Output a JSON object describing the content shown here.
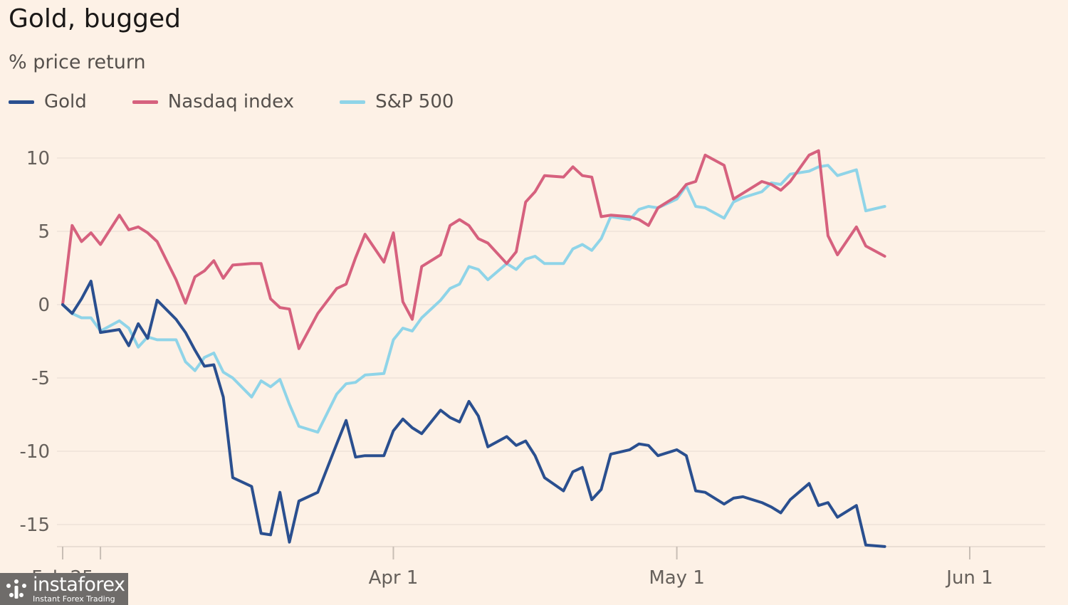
{
  "chart_data": {
    "type": "line",
    "title": "Gold, bugged",
    "subtitle": "% price return",
    "yticks": [
      10,
      5,
      0,
      -5,
      -10,
      -15
    ],
    "ylim": [
      -17,
      11.5
    ],
    "x_start": "2025-02-25",
    "x_end": "2025-06-06",
    "xticks": [
      {
        "date": "2025-02-25",
        "label": "Feb 25"
      },
      {
        "date": "2025-04-01",
        "label": "Apr 1"
      },
      {
        "date": "2025-05-01",
        "label": "May 1"
      },
      {
        "date": "2025-06-01",
        "label": "Jun 1"
      }
    ],
    "x_minor_ticks": [
      "2025-03-01"
    ],
    "grid": true,
    "legend_position": "top-left",
    "series": [
      {
        "name": "Gold",
        "color": "#2a4f8f",
        "points": [
          [
            "2025-02-25",
            0
          ],
          [
            "2025-02-26",
            -0.6
          ],
          [
            "2025-02-27",
            0.4
          ],
          [
            "2025-02-28",
            1.6
          ],
          [
            "2025-03-01",
            -1.9
          ],
          [
            "2025-03-03",
            -1.7
          ],
          [
            "2025-03-04",
            -2.8
          ],
          [
            "2025-03-05",
            -1.3
          ],
          [
            "2025-03-06",
            -2.3
          ],
          [
            "2025-03-07",
            0.3
          ],
          [
            "2025-03-09",
            -1.0
          ],
          [
            "2025-03-10",
            -1.9
          ],
          [
            "2025-03-11",
            -3.1
          ],
          [
            "2025-03-12",
            -4.2
          ],
          [
            "2025-03-13",
            -4.1
          ],
          [
            "2025-03-14",
            -6.3
          ],
          [
            "2025-03-15",
            -11.8
          ],
          [
            "2025-03-17",
            -12.4
          ],
          [
            "2025-03-18",
            -15.6
          ],
          [
            "2025-03-19",
            -15.7
          ],
          [
            "2025-03-20",
            -12.8
          ],
          [
            "2025-03-21",
            -16.2
          ],
          [
            "2025-03-22",
            -13.4
          ],
          [
            "2025-03-24",
            -12.8
          ],
          [
            "2025-03-26",
            -9.5
          ],
          [
            "2025-03-27",
            -7.9
          ],
          [
            "2025-03-28",
            -10.4
          ],
          [
            "2025-03-29",
            -10.3
          ],
          [
            "2025-03-31",
            -10.3
          ],
          [
            "2025-04-01",
            -8.6
          ],
          [
            "2025-04-02",
            -7.8
          ],
          [
            "2025-04-03",
            -8.4
          ],
          [
            "2025-04-04",
            -8.8
          ],
          [
            "2025-04-06",
            -7.2
          ],
          [
            "2025-04-07",
            -7.7
          ],
          [
            "2025-04-08",
            -8.0
          ],
          [
            "2025-04-09",
            -6.6
          ],
          [
            "2025-04-10",
            -7.6
          ],
          [
            "2025-04-11",
            -9.7
          ],
          [
            "2025-04-13",
            -9.0
          ],
          [
            "2025-04-14",
            -9.6
          ],
          [
            "2025-04-15",
            -9.3
          ],
          [
            "2025-04-16",
            -10.3
          ],
          [
            "2025-04-17",
            -11.8
          ],
          [
            "2025-04-19",
            -12.7
          ],
          [
            "2025-04-20",
            -11.4
          ],
          [
            "2025-04-21",
            -11.1
          ],
          [
            "2025-04-22",
            -13.3
          ],
          [
            "2025-04-23",
            -12.6
          ],
          [
            "2025-04-24",
            -10.2
          ],
          [
            "2025-04-26",
            -9.9
          ],
          [
            "2025-04-27",
            -9.5
          ],
          [
            "2025-04-28",
            -9.6
          ],
          [
            "2025-04-29",
            -10.3
          ],
          [
            "2025-05-01",
            -9.9
          ],
          [
            "2025-05-02",
            -10.3
          ],
          [
            "2025-05-03",
            -12.7
          ],
          [
            "2025-05-04",
            -12.8
          ],
          [
            "2025-05-06",
            -13.6
          ],
          [
            "2025-05-07",
            -13.2
          ],
          [
            "2025-05-08",
            -13.1
          ],
          [
            "2025-05-10",
            -13.5
          ],
          [
            "2025-05-11",
            -13.8
          ],
          [
            "2025-05-12",
            -14.2
          ],
          [
            "2025-05-13",
            -13.3
          ],
          [
            "2025-05-15",
            -12.2
          ],
          [
            "2025-05-16",
            -13.7
          ],
          [
            "2025-05-17",
            -13.5
          ],
          [
            "2025-05-18",
            -14.5
          ],
          [
            "2025-05-20",
            -13.7
          ],
          [
            "2025-05-21",
            -16.4
          ],
          [
            "2025-05-23",
            -16.5
          ]
        ]
      },
      {
        "name": "Nasdaq index",
        "color": "#d6617e",
        "points": [
          [
            "2025-02-25",
            0
          ],
          [
            "2025-02-26",
            5.4
          ],
          [
            "2025-02-27",
            4.3
          ],
          [
            "2025-02-28",
            4.9
          ],
          [
            "2025-03-01",
            4.1
          ],
          [
            "2025-03-03",
            6.1
          ],
          [
            "2025-03-04",
            5.1
          ],
          [
            "2025-03-05",
            5.3
          ],
          [
            "2025-03-06",
            4.9
          ],
          [
            "2025-03-07",
            4.3
          ],
          [
            "2025-03-09",
            1.7
          ],
          [
            "2025-03-10",
            0.1
          ],
          [
            "2025-03-11",
            1.9
          ],
          [
            "2025-03-12",
            2.3
          ],
          [
            "2025-03-13",
            3.0
          ],
          [
            "2025-03-14",
            1.8
          ],
          [
            "2025-03-15",
            2.7
          ],
          [
            "2025-03-17",
            2.8
          ],
          [
            "2025-03-18",
            2.8
          ],
          [
            "2025-03-19",
            0.4
          ],
          [
            "2025-03-20",
            -0.2
          ],
          [
            "2025-03-21",
            -0.3
          ],
          [
            "2025-03-22",
            -3.0
          ],
          [
            "2025-03-24",
            -0.6
          ],
          [
            "2025-03-26",
            1.1
          ],
          [
            "2025-03-27",
            1.4
          ],
          [
            "2025-03-28",
            3.2
          ],
          [
            "2025-03-29",
            4.8
          ],
          [
            "2025-03-31",
            2.9
          ],
          [
            "2025-04-01",
            4.9
          ],
          [
            "2025-04-02",
            0.2
          ],
          [
            "2025-04-03",
            -1.0
          ],
          [
            "2025-04-04",
            2.6
          ],
          [
            "2025-04-06",
            3.4
          ],
          [
            "2025-04-07",
            5.4
          ],
          [
            "2025-04-08",
            5.8
          ],
          [
            "2025-04-09",
            5.4
          ],
          [
            "2025-04-10",
            4.5
          ],
          [
            "2025-04-11",
            4.2
          ],
          [
            "2025-04-13",
            2.8
          ],
          [
            "2025-04-14",
            3.6
          ],
          [
            "2025-04-15",
            7.0
          ],
          [
            "2025-04-16",
            7.7
          ],
          [
            "2025-04-17",
            8.8
          ],
          [
            "2025-04-19",
            8.7
          ],
          [
            "2025-04-20",
            9.4
          ],
          [
            "2025-04-21",
            8.8
          ],
          [
            "2025-04-22",
            8.7
          ],
          [
            "2025-04-23",
            6.0
          ],
          [
            "2025-04-24",
            6.1
          ],
          [
            "2025-04-26",
            6.0
          ],
          [
            "2025-04-27",
            5.8
          ],
          [
            "2025-04-28",
            5.4
          ],
          [
            "2025-04-29",
            6.6
          ],
          [
            "2025-05-01",
            7.4
          ],
          [
            "2025-05-02",
            8.2
          ],
          [
            "2025-05-03",
            8.4
          ],
          [
            "2025-05-04",
            10.2
          ],
          [
            "2025-05-06",
            9.5
          ],
          [
            "2025-05-07",
            7.2
          ],
          [
            "2025-05-08",
            7.6
          ],
          [
            "2025-05-10",
            8.4
          ],
          [
            "2025-05-11",
            8.2
          ],
          [
            "2025-05-12",
            7.8
          ],
          [
            "2025-05-13",
            8.4
          ],
          [
            "2025-05-15",
            10.2
          ],
          [
            "2025-05-16",
            10.5
          ],
          [
            "2025-05-17",
            4.7
          ],
          [
            "2025-05-18",
            3.4
          ],
          [
            "2025-05-20",
            5.3
          ],
          [
            "2025-05-21",
            4.0
          ],
          [
            "2025-05-23",
            3.3
          ]
        ]
      },
      {
        "name": "S&P 500",
        "color": "#8fd4e8",
        "points": [
          [
            "2025-02-25",
            0
          ],
          [
            "2025-02-26",
            -0.6
          ],
          [
            "2025-02-27",
            -0.9
          ],
          [
            "2025-02-28",
            -0.9
          ],
          [
            "2025-03-01",
            -1.8
          ],
          [
            "2025-03-03",
            -1.1
          ],
          [
            "2025-03-04",
            -1.6
          ],
          [
            "2025-03-05",
            -2.9
          ],
          [
            "2025-03-06",
            -2.2
          ],
          [
            "2025-03-07",
            -2.4
          ],
          [
            "2025-03-09",
            -2.4
          ],
          [
            "2025-03-10",
            -3.9
          ],
          [
            "2025-03-11",
            -4.5
          ],
          [
            "2025-03-12",
            -3.6
          ],
          [
            "2025-03-13",
            -3.3
          ],
          [
            "2025-03-14",
            -4.6
          ],
          [
            "2025-03-15",
            -5.0
          ],
          [
            "2025-03-17",
            -6.3
          ],
          [
            "2025-03-18",
            -5.2
          ],
          [
            "2025-03-19",
            -5.6
          ],
          [
            "2025-03-20",
            -5.1
          ],
          [
            "2025-03-21",
            -6.8
          ],
          [
            "2025-03-22",
            -8.3
          ],
          [
            "2025-03-24",
            -8.7
          ],
          [
            "2025-03-26",
            -6.1
          ],
          [
            "2025-03-27",
            -5.4
          ],
          [
            "2025-03-28",
            -5.3
          ],
          [
            "2025-03-29",
            -4.8
          ],
          [
            "2025-03-31",
            -4.7
          ],
          [
            "2025-04-01",
            -2.4
          ],
          [
            "2025-04-02",
            -1.6
          ],
          [
            "2025-04-03",
            -1.8
          ],
          [
            "2025-04-04",
            -0.9
          ],
          [
            "2025-04-06",
            0.3
          ],
          [
            "2025-04-07",
            1.1
          ],
          [
            "2025-04-08",
            1.4
          ],
          [
            "2025-04-09",
            2.6
          ],
          [
            "2025-04-10",
            2.4
          ],
          [
            "2025-04-11",
            1.7
          ],
          [
            "2025-04-13",
            2.8
          ],
          [
            "2025-04-14",
            2.4
          ],
          [
            "2025-04-15",
            3.1
          ],
          [
            "2025-04-16",
            3.3
          ],
          [
            "2025-04-17",
            2.8
          ],
          [
            "2025-04-19",
            2.8
          ],
          [
            "2025-04-20",
            3.8
          ],
          [
            "2025-04-21",
            4.1
          ],
          [
            "2025-04-22",
            3.7
          ],
          [
            "2025-04-23",
            4.5
          ],
          [
            "2025-04-24",
            6.0
          ],
          [
            "2025-04-26",
            5.8
          ],
          [
            "2025-04-27",
            6.5
          ],
          [
            "2025-04-28",
            6.7
          ],
          [
            "2025-04-29",
            6.6
          ],
          [
            "2025-05-01",
            7.2
          ],
          [
            "2025-05-02",
            8.1
          ],
          [
            "2025-05-03",
            6.7
          ],
          [
            "2025-05-04",
            6.6
          ],
          [
            "2025-05-06",
            5.9
          ],
          [
            "2025-05-07",
            7.0
          ],
          [
            "2025-05-08",
            7.3
          ],
          [
            "2025-05-10",
            7.7
          ],
          [
            "2025-05-11",
            8.3
          ],
          [
            "2025-05-12",
            8.2
          ],
          [
            "2025-05-13",
            8.9
          ],
          [
            "2025-05-15",
            9.1
          ],
          [
            "2025-05-16",
            9.4
          ],
          [
            "2025-05-17",
            9.5
          ],
          [
            "2025-05-18",
            8.8
          ],
          [
            "2025-05-20",
            9.2
          ],
          [
            "2025-05-21",
            6.4
          ],
          [
            "2025-05-23",
            6.7
          ]
        ]
      }
    ]
  },
  "watermark": {
    "name": "instaforex",
    "tagline": "Instant Forex Trading"
  }
}
